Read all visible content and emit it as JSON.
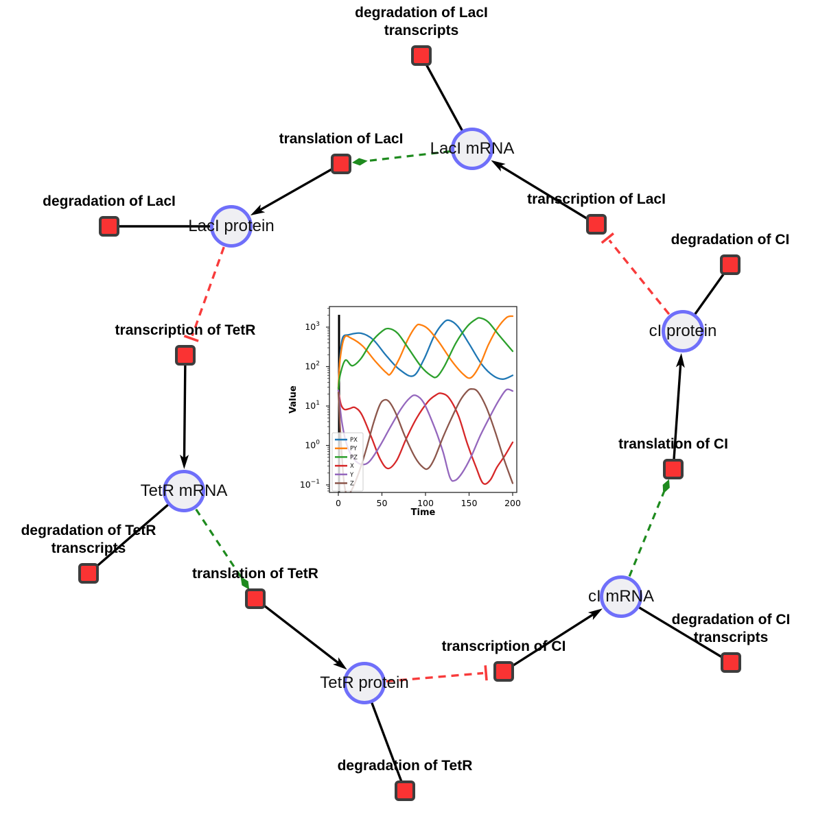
{
  "network": {
    "species": [
      {
        "id": "laci-mrna",
        "label": "LacI mRNA"
      },
      {
        "id": "laci-protein",
        "label": "LacI protein"
      },
      {
        "id": "tetr-mrna",
        "label": "TetR mRNA"
      },
      {
        "id": "tetr-protein",
        "label": "TetR protein"
      },
      {
        "id": "ci-mrna",
        "label": "cI mRNA"
      },
      {
        "id": "ci-protein",
        "label": "cI protein"
      }
    ],
    "reactions": [
      {
        "id": "degradation-of-laci-transcripts",
        "label_lines": [
          "degradation of LacI",
          "transcripts"
        ]
      },
      {
        "id": "translation-of-laci",
        "label_lines": [
          "translation of LacI"
        ]
      },
      {
        "id": "transcription-of-laci",
        "label_lines": [
          "transcription of LacI"
        ]
      },
      {
        "id": "degradation-of-laci",
        "label_lines": [
          "degradation of LacI"
        ]
      },
      {
        "id": "transcription-of-tetr",
        "label_lines": [
          "transcription of TetR"
        ]
      },
      {
        "id": "degradation-of-ci",
        "label_lines": [
          "degradation of CI"
        ]
      },
      {
        "id": "translation-of-ci",
        "label_lines": [
          "translation of CI"
        ]
      },
      {
        "id": "transcription-of-ci",
        "label_lines": [
          "transcription of CI"
        ]
      },
      {
        "id": "degradation-of-ci-transcripts",
        "label_lines": [
          "degradation of CI",
          "transcripts"
        ]
      },
      {
        "id": "degradation-of-tetr-transcripts",
        "label_lines": [
          "degradation of TetR",
          "transcripts"
        ]
      },
      {
        "id": "translation-of-tetr",
        "label_lines": [
          "translation of TetR"
        ]
      },
      {
        "id": "degradation-of-tetr",
        "label_lines": [
          "degradation of TetR"
        ]
      }
    ],
    "edges": [
      {
        "from": "laci-mrna",
        "to": "degradation-of-laci-transcripts",
        "type": "consumption"
      },
      {
        "from": "transcription-of-laci",
        "to": "laci-mrna",
        "type": "production"
      },
      {
        "from": "laci-mrna",
        "to": "translation-of-laci",
        "type": "modifier"
      },
      {
        "from": "translation-of-laci",
        "to": "laci-protein",
        "type": "production"
      },
      {
        "from": "laci-protein",
        "to": "degradation-of-laci",
        "type": "consumption"
      },
      {
        "from": "laci-protein",
        "to": "transcription-of-tetr",
        "type": "inhibition"
      },
      {
        "from": "transcription-of-tetr",
        "to": "tetr-mrna",
        "type": "production"
      },
      {
        "from": "tetr-mrna",
        "to": "degradation-of-tetr-transcripts",
        "type": "consumption"
      },
      {
        "from": "tetr-mrna",
        "to": "translation-of-tetr",
        "type": "modifier"
      },
      {
        "from": "translation-of-tetr",
        "to": "tetr-protein",
        "type": "production"
      },
      {
        "from": "tetr-protein",
        "to": "degradation-of-tetr",
        "type": "consumption"
      },
      {
        "from": "tetr-protein",
        "to": "transcription-of-ci",
        "type": "inhibition"
      },
      {
        "from": "transcription-of-ci",
        "to": "ci-mrna",
        "type": "production"
      },
      {
        "from": "ci-mrna",
        "to": "degradation-of-ci-transcripts",
        "type": "consumption"
      },
      {
        "from": "ci-mrna",
        "to": "translation-of-ci",
        "type": "modifier"
      },
      {
        "from": "translation-of-ci",
        "to": "ci-protein",
        "type": "production"
      },
      {
        "from": "ci-protein",
        "to": "degradation-of-ci",
        "type": "consumption"
      },
      {
        "from": "ci-protein",
        "to": "transcription-of-laci",
        "type": "inhibition"
      }
    ],
    "style_colors": {
      "species_fill": "#efeff3",
      "species_border": "#6f6ffa",
      "reaction_fill": "#fa3333",
      "reaction_border": "#3d3d3d",
      "plain_edge": "#000000",
      "production_edge": "#000000",
      "modifier_edge": "#1e8a1e",
      "inhibition_edge": "#f83b3b"
    }
  },
  "chart_data": {
    "type": "line",
    "title": "",
    "xlabel": "Time",
    "ylabel": "Value",
    "yscale": "log",
    "grid": false,
    "legend_position": "lower left",
    "x_ticks": [
      0,
      50,
      100,
      150,
      200
    ],
    "y_tick_exponents": [
      -1,
      0,
      1,
      2,
      3
    ],
    "xlim": [
      -10,
      205
    ],
    "ylim": [
      0.065,
      3300
    ],
    "marker_line": {
      "x": 0.8,
      "color": "#000000"
    },
    "series": [
      {
        "name": "PX",
        "color": "#1f77b4",
        "points": [
          [
            0,
            28
          ],
          [
            2,
            180
          ],
          [
            5,
            540
          ],
          [
            12,
            640
          ],
          [
            26,
            700
          ],
          [
            40,
            480
          ],
          [
            55,
            190
          ],
          [
            70,
            85
          ],
          [
            86,
            58
          ],
          [
            98,
            150
          ],
          [
            110,
            600
          ],
          [
            120,
            1250
          ],
          [
            127,
            1490
          ],
          [
            137,
            1050
          ],
          [
            150,
            380
          ],
          [
            165,
            110
          ],
          [
            178,
            58
          ],
          [
            189,
            48
          ],
          [
            200,
            60
          ]
        ]
      },
      {
        "name": "PY",
        "color": "#ff7f0e",
        "points": [
          [
            0,
            28
          ],
          [
            2,
            150
          ],
          [
            7,
            545
          ],
          [
            15,
            520
          ],
          [
            28,
            330
          ],
          [
            42,
            140
          ],
          [
            55,
            70
          ],
          [
            60,
            66
          ],
          [
            70,
            160
          ],
          [
            80,
            500
          ],
          [
            89,
            1050
          ],
          [
            94,
            1150
          ],
          [
            103,
            900
          ],
          [
            115,
            430
          ],
          [
            130,
            140
          ],
          [
            143,
            65
          ],
          [
            152,
            52
          ],
          [
            162,
            105
          ],
          [
            172,
            350
          ],
          [
            182,
            900
          ],
          [
            193,
            1750
          ],
          [
            200,
            1900
          ]
        ]
      },
      {
        "name": "PZ",
        "color": "#2ca02c",
        "points": [
          [
            0,
            25
          ],
          [
            2,
            60
          ],
          [
            8,
            145
          ],
          [
            16,
            105
          ],
          [
            26,
            160
          ],
          [
            38,
            420
          ],
          [
            50,
            780
          ],
          [
            58,
            920
          ],
          [
            68,
            700
          ],
          [
            80,
            300
          ],
          [
            95,
            100
          ],
          [
            106,
            60
          ],
          [
            113,
            55
          ],
          [
            122,
            105
          ],
          [
            135,
            400
          ],
          [
            148,
            1050
          ],
          [
            158,
            1600
          ],
          [
            163,
            1700
          ],
          [
            172,
            1350
          ],
          [
            185,
            600
          ],
          [
            200,
            245
          ]
        ]
      },
      {
        "name": "X",
        "color": "#d62728",
        "points": [
          [
            0,
            25
          ],
          [
            3,
            11
          ],
          [
            7,
            8.2
          ],
          [
            13,
            8.6
          ],
          [
            19,
            9.2
          ],
          [
            27,
            6
          ],
          [
            38,
            1.6
          ],
          [
            48,
            0.45
          ],
          [
            57,
            0.26
          ],
          [
            67,
            0.42
          ],
          [
            78,
            1.5
          ],
          [
            90,
            5
          ],
          [
            103,
            13
          ],
          [
            112,
            19
          ],
          [
            118,
            21
          ],
          [
            127,
            16
          ],
          [
            138,
            5.5
          ],
          [
            148,
            1.1
          ],
          [
            158,
            0.28
          ],
          [
            166,
            0.11
          ],
          [
            174,
            0.13
          ],
          [
            182,
            0.28
          ],
          [
            191,
            0.55
          ],
          [
            200,
            1.2
          ]
        ]
      },
      {
        "name": "Y",
        "color": "#9467bd",
        "points": [
          [
            0,
            25
          ],
          [
            4,
            4
          ],
          [
            10,
            1
          ],
          [
            18,
            0.45
          ],
          [
            27,
            0.33
          ],
          [
            36,
            0.4
          ],
          [
            48,
            1
          ],
          [
            60,
            3
          ],
          [
            72,
            8.5
          ],
          [
            82,
            16
          ],
          [
            89,
            18.5
          ],
          [
            98,
            12
          ],
          [
            110,
            3
          ],
          [
            120,
            0.7
          ],
          [
            128,
            0.155
          ],
          [
            134,
            0.13
          ],
          [
            142,
            0.2
          ],
          [
            152,
            0.5
          ],
          [
            163,
            1.8
          ],
          [
            175,
            6
          ],
          [
            185,
            15
          ],
          [
            193,
            26
          ],
          [
            200,
            24
          ]
        ]
      },
      {
        "name": "Z",
        "color": "#8c564b",
        "points": [
          [
            0,
            22
          ],
          [
            2,
            3
          ],
          [
            6,
            0.15
          ],
          [
            10,
            0.055
          ],
          [
            16,
            0.08
          ],
          [
            24,
            0.22
          ],
          [
            32,
            0.8
          ],
          [
            40,
            3.5
          ],
          [
            47,
            10
          ],
          [
            52,
            14
          ],
          [
            58,
            13
          ],
          [
            66,
            6.5
          ],
          [
            76,
            1.8
          ],
          [
            88,
            0.5
          ],
          [
            97,
            0.28
          ],
          [
            103,
            0.26
          ],
          [
            110,
            0.45
          ],
          [
            120,
            1.6
          ],
          [
            130,
            5
          ],
          [
            140,
            14
          ],
          [
            148,
            24
          ],
          [
            153,
            27
          ],
          [
            160,
            23
          ],
          [
            170,
            9
          ],
          [
            180,
            2.2
          ],
          [
            190,
            0.45
          ],
          [
            200,
            0.11
          ]
        ]
      }
    ]
  }
}
